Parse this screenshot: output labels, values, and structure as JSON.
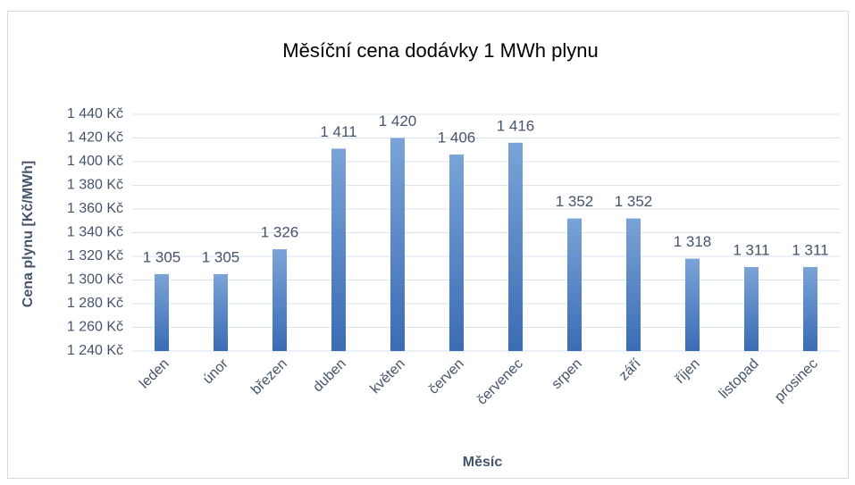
{
  "chart_data": {
    "type": "bar",
    "title": "Měsíční cena dodávky 1 MWh plynu",
    "x_label": "Měsíc",
    "y_label": "Cena plynu [Kč/MWh]",
    "categories": [
      "leden",
      "únor",
      "březen",
      "duben",
      "květen",
      "červen",
      "červenec",
      "srpen",
      "září",
      "říjen",
      "listopad",
      "prosinec"
    ],
    "values": [
      1305,
      1305,
      1326,
      1411,
      1420,
      1406,
      1416,
      1352,
      1352,
      1318,
      1311,
      1311
    ],
    "value_labels": [
      "1 305",
      "1 305",
      "1 326",
      "1 411",
      "1 420",
      "1 406",
      "1 416",
      "1 352",
      "1 352",
      "1 318",
      "1 311",
      "1 311"
    ],
    "color": "#4a7ebf",
    "ylim": [
      1240,
      1440
    ],
    "yticks": [
      {
        "value": 1240,
        "label": "1 240 Kč"
      },
      {
        "value": 1260,
        "label": "1 260 Kč"
      },
      {
        "value": 1280,
        "label": "1 280 Kč"
      },
      {
        "value": 1300,
        "label": "1 300 Kč"
      },
      {
        "value": 1320,
        "label": "1 320 Kč"
      },
      {
        "value": 1340,
        "label": "1 340 Kč"
      },
      {
        "value": 1360,
        "label": "1 360 Kč"
      },
      {
        "value": 1380,
        "label": "1 380 Kč"
      },
      {
        "value": 1400,
        "label": "1 400 Kč"
      },
      {
        "value": 1420,
        "label": "1 420 Kč"
      },
      {
        "value": 1440,
        "label": "1 440 Kč"
      }
    ],
    "grid": true
  }
}
